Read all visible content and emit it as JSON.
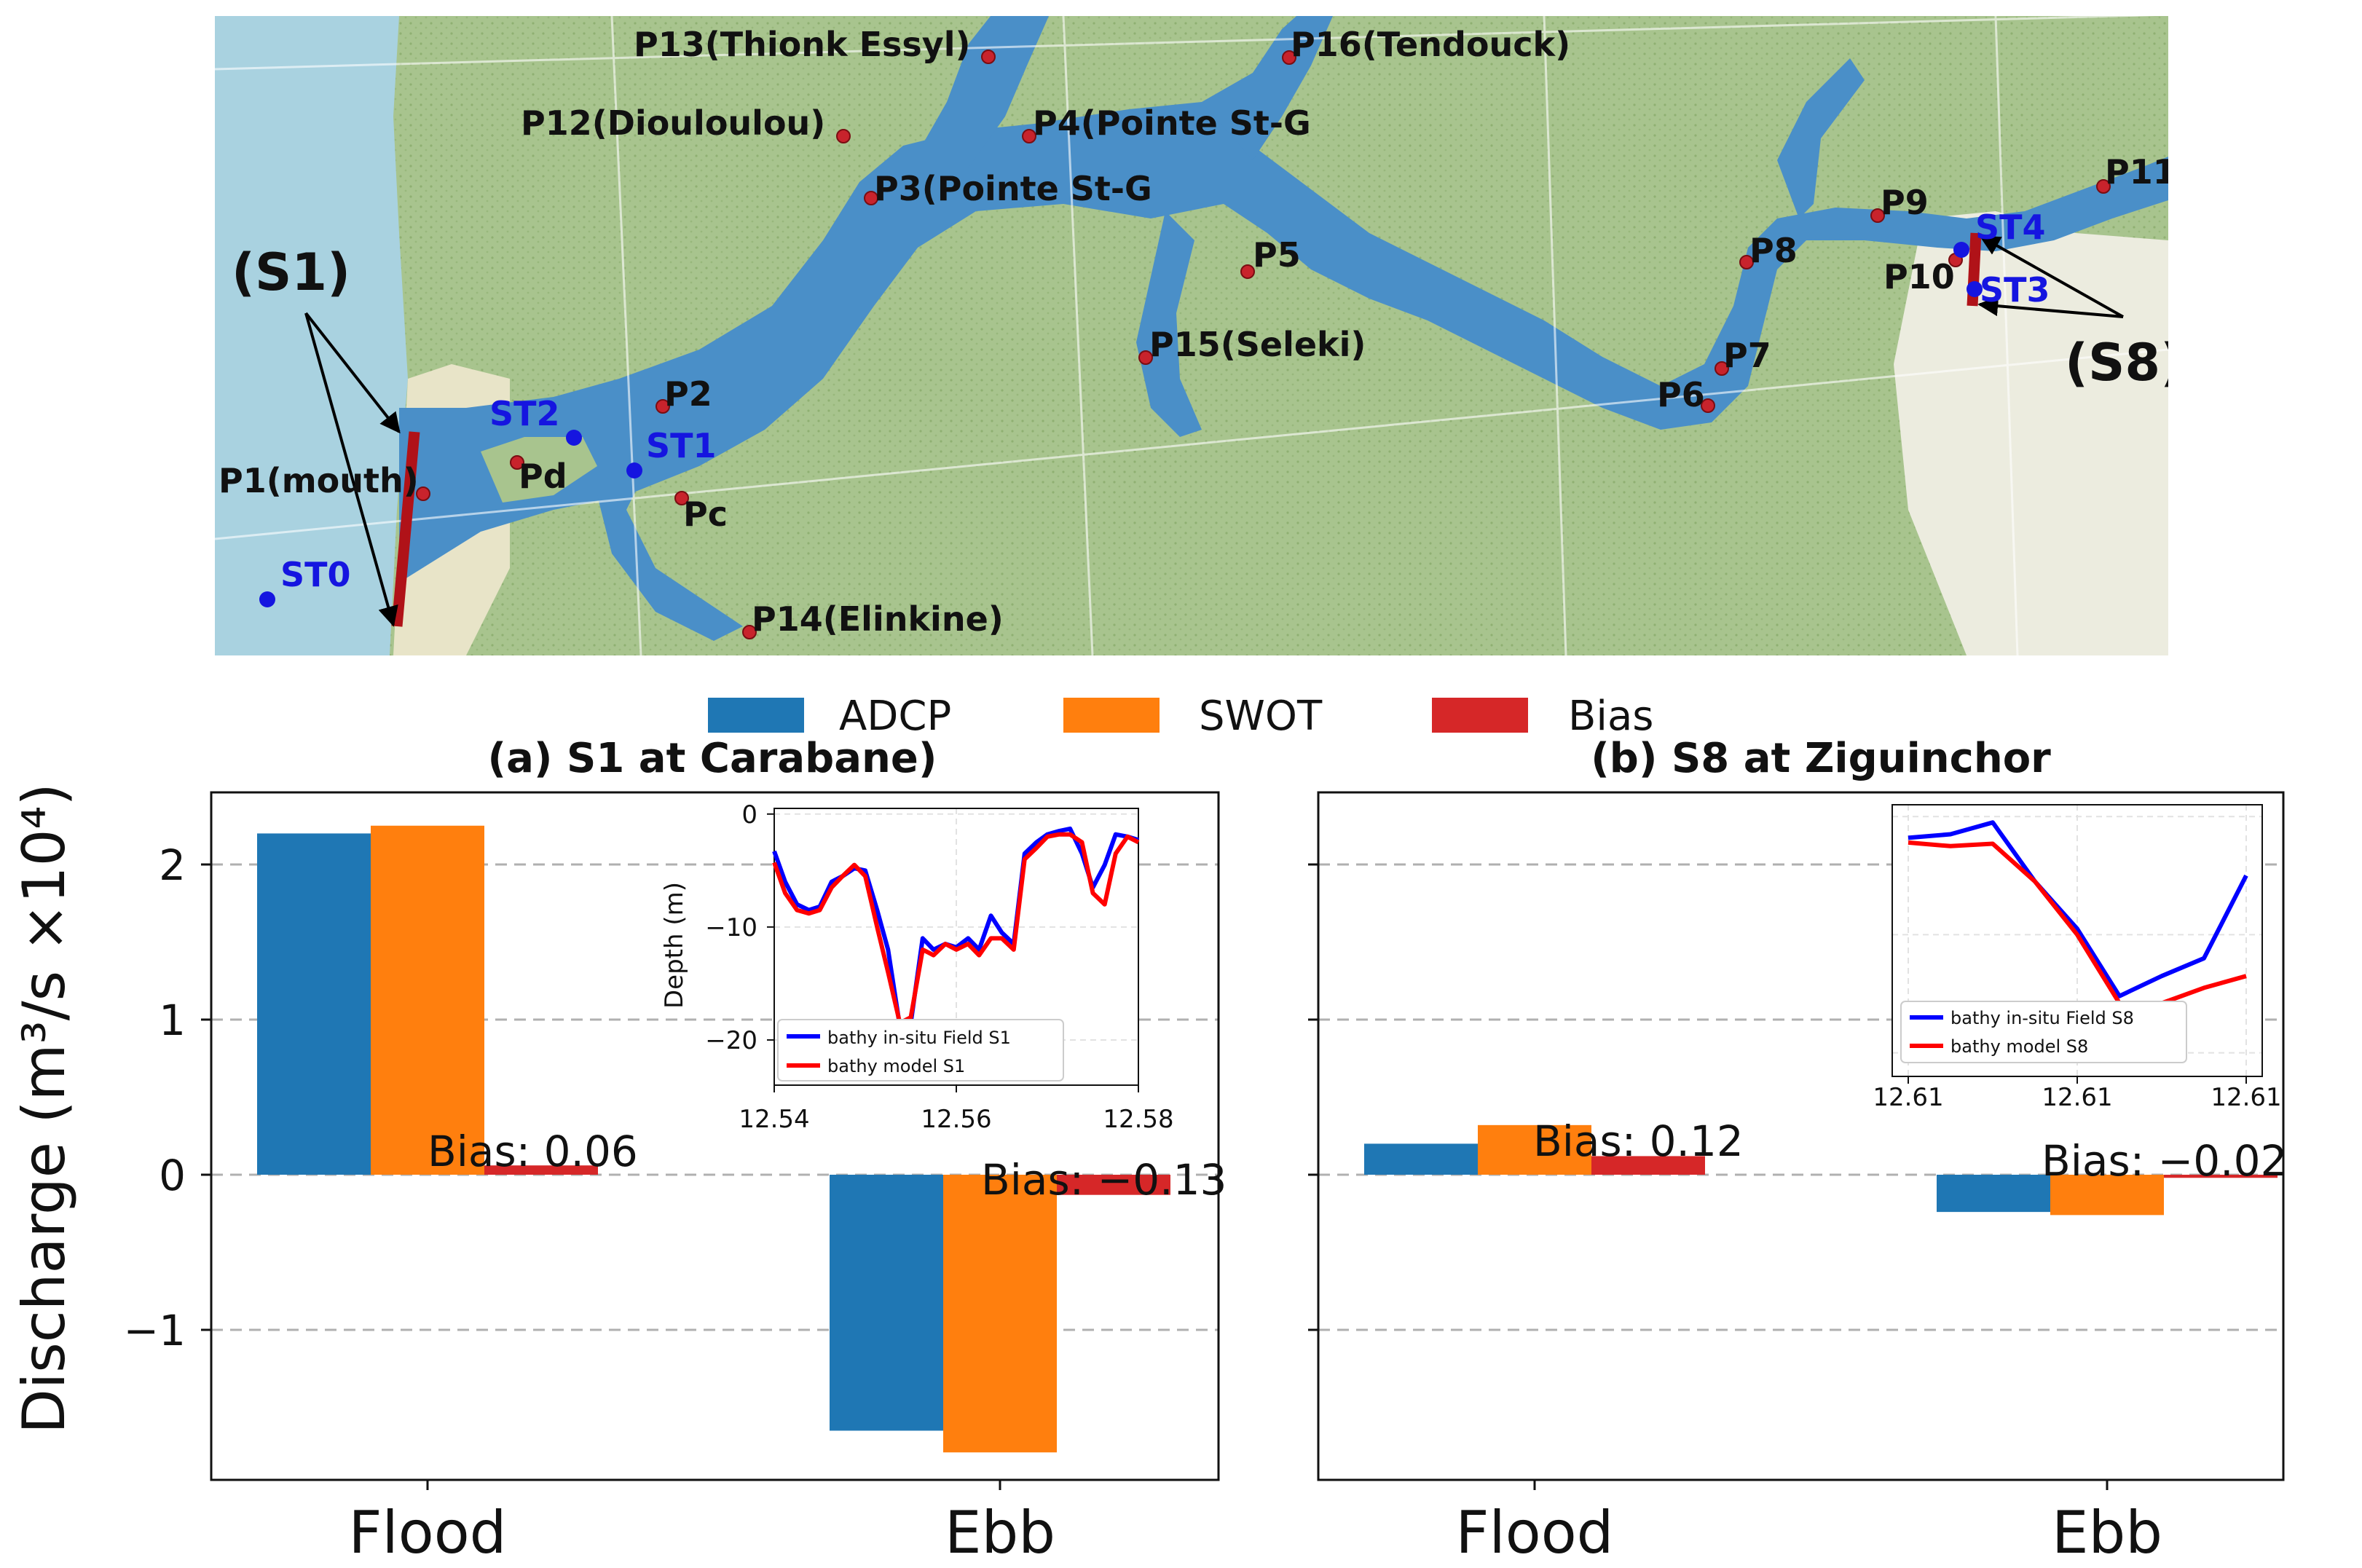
{
  "map": {
    "stations": {
      "P1": "P1(mouth)",
      "Pd": "Pd",
      "P2": "P2",
      "Pc": "Pc",
      "P3": "P3(Pointe St-G",
      "P4": "P4(Pointe St-G",
      "P5": "P5",
      "P6": "P6",
      "P7": "P7",
      "P8": "P8",
      "P9": "P9",
      "P10": "P10",
      "P11": "P11",
      "P12": "P12(Diouloulou)",
      "P13": "P13(Thionk Essyl)",
      "P14": "P14(Elinkine)",
      "P15": "P15(Seleki)",
      "P16": "P16(Tendouck)",
      "ST0": "ST0",
      "ST1": "ST1",
      "ST2": "ST2",
      "ST3": "ST3",
      "ST4": "ST4"
    },
    "sections": {
      "S1": "(S1)",
      "S8": "(S8)"
    },
    "colors": {
      "water": "#4a8fc8",
      "land": "#a8c48e",
      "ocean": "#a9d2e0",
      "urban": "#ececdf",
      "point": "#c8232c",
      "station": "#1515e0",
      "section": "#b01218"
    }
  },
  "legend": {
    "adcp": "ADCP",
    "swot": "SWOT",
    "bias": "Bias"
  },
  "colors": {
    "adcp": "#1f77b4",
    "swot": "#ff7f0e",
    "bias": "#d62728",
    "insitu": "#0000ff",
    "model": "#ff0000"
  },
  "ylabel": "Discharge (m³/s ×10⁴)",
  "chart_data": [
    {
      "type": "bar",
      "title": "(a) S1 at Carabane)",
      "categories": [
        "Flood",
        "Ebb"
      ],
      "series": [
        {
          "name": "ADCP",
          "values": [
            2.2,
            -1.65
          ]
        },
        {
          "name": "SWOT",
          "values": [
            2.25,
            -1.79
          ]
        },
        {
          "name": "Bias",
          "values": [
            0.06,
            -0.13
          ]
        }
      ],
      "ylim": [
        -2.0,
        2.4
      ],
      "yticks": [
        -1,
        0,
        1,
        2
      ],
      "ytick_labels": [
        "−1",
        "0",
        "1",
        "2"
      ],
      "bias_labels": [
        "Bias: 0.06",
        "Bias: −0.13"
      ],
      "inset": {
        "type": "line",
        "ylabel": "Depth (m)",
        "xlim": [
          12.54,
          12.58
        ],
        "ylim": [
          -24,
          0.5
        ],
        "xticks": [
          12.54,
          12.56,
          12.58
        ],
        "xtick_labels": [
          "12.54",
          "12.56",
          "12.58"
        ],
        "yticks": [
          0,
          -10,
          -20
        ],
        "ytick_labels": [
          "0",
          "−10",
          "−20"
        ],
        "series": [
          {
            "name": "bathy in-situ Field S1",
            "x": [
              12.54,
              12.5412,
              12.5425,
              12.5438,
              12.545,
              12.5463,
              12.5475,
              12.5488,
              12.55,
              12.5513,
              12.5525,
              12.5538,
              12.555,
              12.5563,
              12.5575,
              12.5588,
              12.56,
              12.5613,
              12.5625,
              12.5638,
              12.565,
              12.5663,
              12.5675,
              12.5688,
              12.57,
              12.5713,
              12.5725,
              12.5738,
              12.575,
              12.5763,
              12.5775,
              12.5788,
              12.58
            ],
            "y": [
              -3.3,
              -6.0,
              -8.0,
              -8.5,
              -8.2,
              -6.0,
              -5.5,
              -4.8,
              -5.0,
              -8.5,
              -12.0,
              -18.8,
              -18.5,
              -11.0,
              -12.0,
              -11.5,
              -11.8,
              -11.0,
              -12.0,
              -9.0,
              -10.5,
              -11.5,
              -3.5,
              -2.5,
              -1.8,
              -1.5,
              -1.3,
              -3.5,
              -6.5,
              -4.5,
              -1.8,
              -2.0,
              -2.3
            ]
          },
          {
            "name": "bathy model S1",
            "x": [
              12.54,
              12.5412,
              12.5425,
              12.5438,
              12.545,
              12.5463,
              12.5475,
              12.5488,
              12.55,
              12.5513,
              12.5525,
              12.5538,
              12.555,
              12.5563,
              12.5575,
              12.5588,
              12.56,
              12.5613,
              12.5625,
              12.5638,
              12.565,
              12.5663,
              12.5675,
              12.5688,
              12.57,
              12.5713,
              12.5725,
              12.5738,
              12.575,
              12.5763,
              12.5775,
              12.5788,
              12.58
            ],
            "y": [
              -4.3,
              -7.0,
              -8.5,
              -8.8,
              -8.5,
              -6.5,
              -5.5,
              -4.5,
              -5.5,
              -10.0,
              -14.0,
              -18.5,
              -18.0,
              -12.0,
              -12.5,
              -11.5,
              -12.0,
              -11.5,
              -12.5,
              -11.0,
              -11.0,
              -12.0,
              -4.0,
              -3.0,
              -2.0,
              -1.8,
              -1.8,
              -2.5,
              -7.0,
              -8.0,
              -3.5,
              -2.0,
              -2.5
            ]
          }
        ]
      }
    },
    {
      "type": "bar",
      "title": "(b) S8 at Ziguinchor",
      "categories": [
        "Flood",
        "Ebb"
      ],
      "series": [
        {
          "name": "ADCP",
          "values": [
            0.2,
            -0.24
          ]
        },
        {
          "name": "SWOT",
          "values": [
            0.32,
            -0.26
          ]
        },
        {
          "name": "Bias",
          "values": [
            0.12,
            -0.02
          ]
        }
      ],
      "ylim": [
        -2.0,
        2.4
      ],
      "yticks": [
        -1,
        0,
        1,
        2
      ],
      "bias_labels": [
        "Bias: 0.12",
        "Bias: −0.02"
      ],
      "inset": {
        "type": "line",
        "xtick_labels": [
          "12.61",
          "12.61",
          "12.61"
        ],
        "series": [
          {
            "name": "bathy in-situ Field S8",
            "x": [
              0,
              1,
              2,
              3,
              4,
              5,
              6,
              7,
              8
            ],
            "y": [
              -1.8,
              -1.5,
              -0.5,
              -5.5,
              -9.5,
              -15.2,
              -13.5,
              -12.0,
              -5.0
            ]
          },
          {
            "name": "bathy model S8",
            "x": [
              0,
              1,
              2,
              3,
              4,
              5,
              6,
              7,
              8
            ],
            "y": [
              -2.2,
              -2.5,
              -2.3,
              -5.5,
              -10.0,
              -15.8,
              -15.8,
              -14.5,
              -13.5
            ]
          }
        ]
      }
    }
  ]
}
